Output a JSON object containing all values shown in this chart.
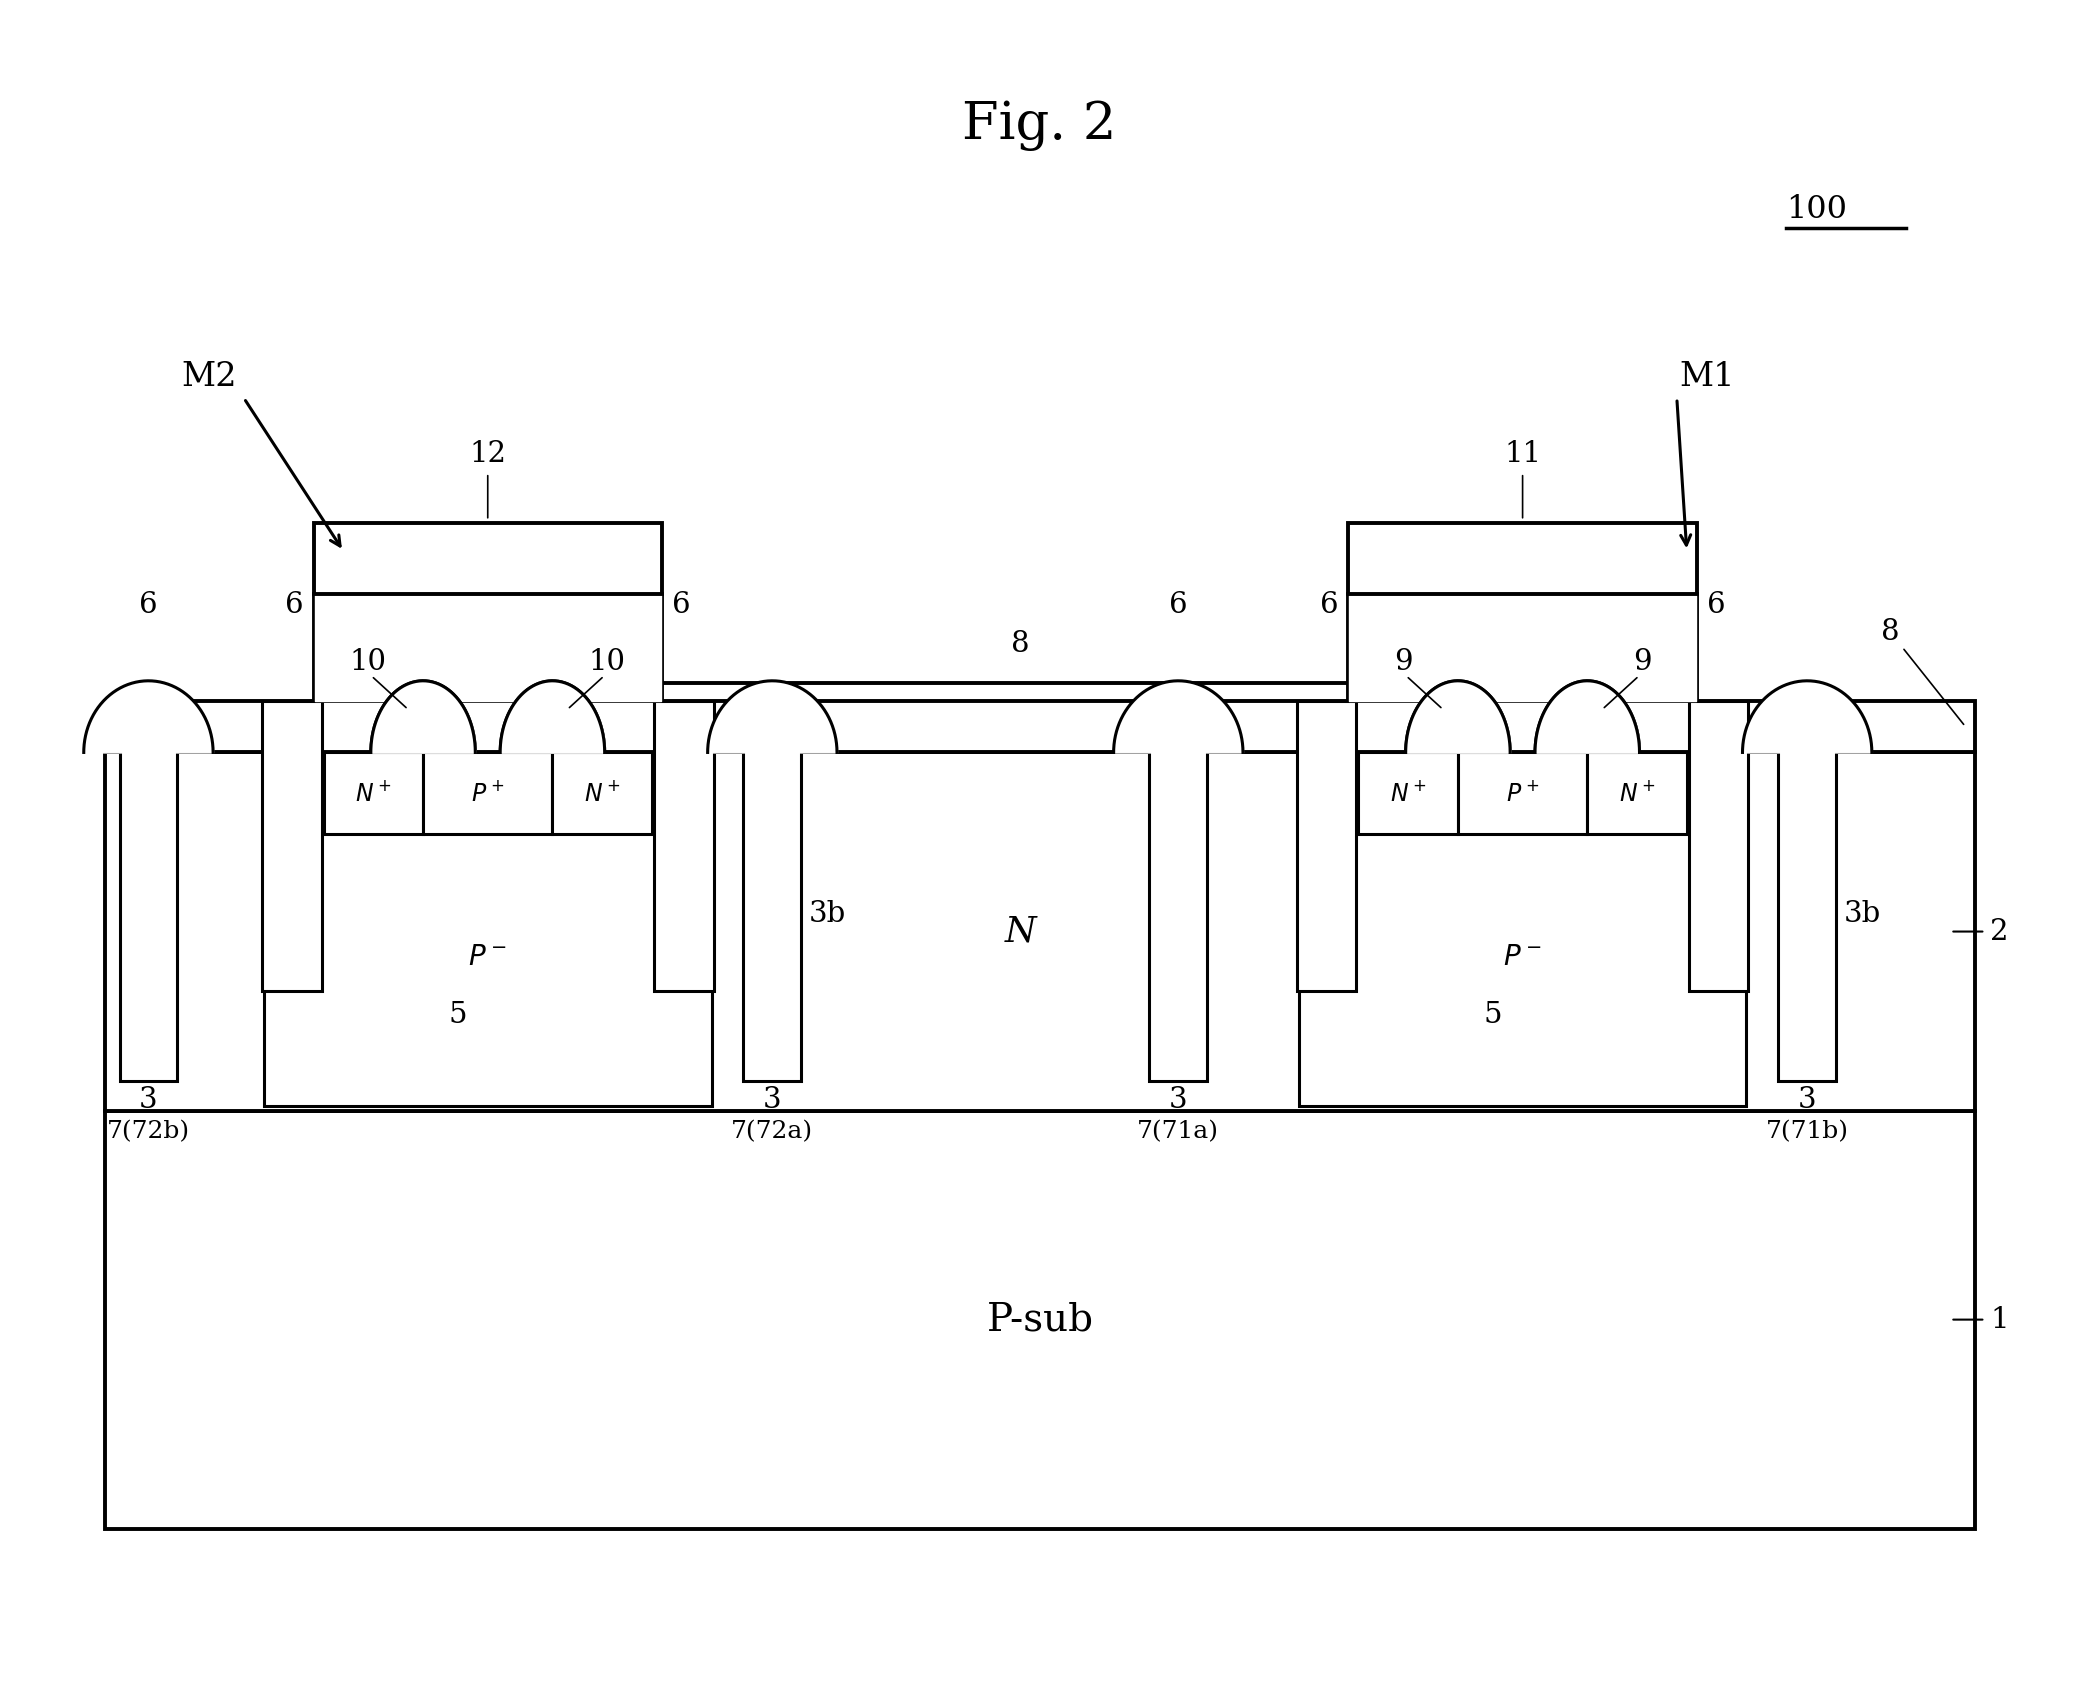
{
  "title": "Fig. 2",
  "title_fontsize": 38,
  "bg_color": "#ffffff",
  "line_color": "#000000",
  "fill_color": "#ffffff",
  "fig_width": 20.78,
  "fig_height": 16.82,
  "psub_label": "P-sub",
  "n_label": "N",
  "ref_fontsize": 21
}
